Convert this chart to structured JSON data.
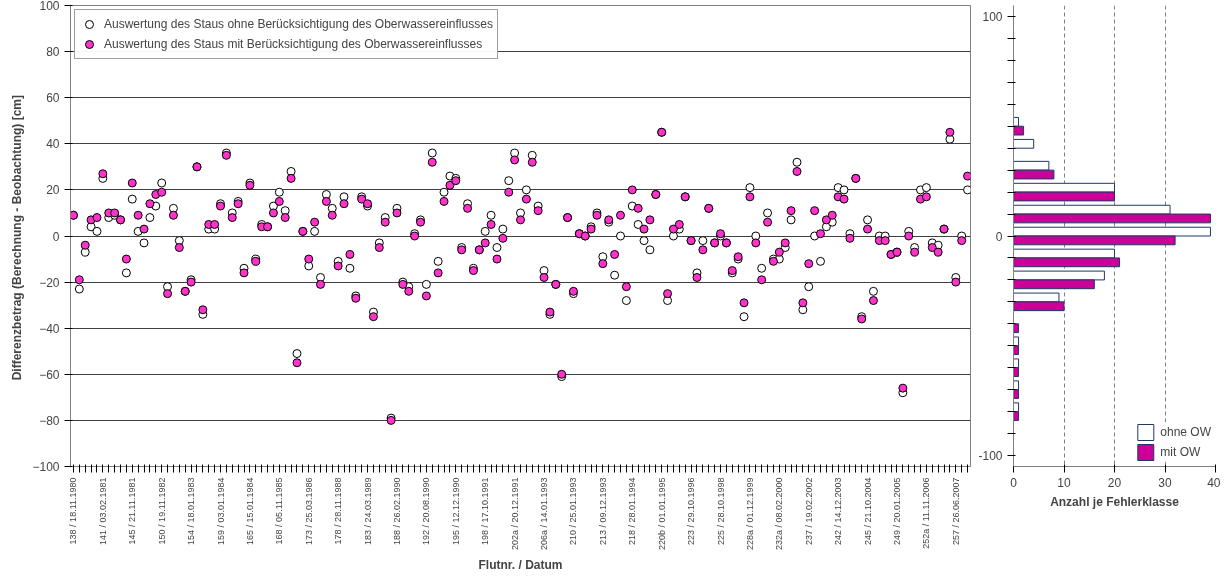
{
  "chart_data": [
    {
      "type": "scatter",
      "xlabel": "Flutnr. / Datum",
      "ylabel": "Differenzbetrag (Berechnung - Beobachtung)  [cm]",
      "categories": [
        "138 / 18.11.1980",
        null,
        null,
        null,
        null,
        "141 / 03.02.1981",
        null,
        null,
        null,
        null,
        "145 / 21.11.1981",
        null,
        null,
        null,
        null,
        "150 / 19.11.1982",
        null,
        null,
        null,
        null,
        "154 / 18.01.1983",
        null,
        null,
        null,
        null,
        "159 / 03.01.1984",
        null,
        null,
        null,
        null,
        "165 / 15.01.1984",
        null,
        null,
        null,
        null,
        "168 / 05.11.1985",
        null,
        null,
        null,
        null,
        "173 / 25.03.1986",
        null,
        null,
        null,
        null,
        "178 / 28.11.1988",
        null,
        null,
        null,
        null,
        "183 / 24.03.1989",
        null,
        null,
        null,
        null,
        "188 / 26.02.1990",
        null,
        null,
        null,
        null,
        "192 / 20.08.1990",
        null,
        null,
        null,
        null,
        "195 / 12.12.1990",
        null,
        null,
        null,
        null,
        "198 / 17.10.1991",
        null,
        null,
        null,
        null,
        "202a / 20.12.1991",
        null,
        null,
        null,
        null,
        "206a / 14.01.1993",
        null,
        null,
        null,
        null,
        "210 / 25.01.1993",
        null,
        null,
        null,
        null,
        "213 / 09.12.1993",
        null,
        null,
        null,
        null,
        "218 / 28.01.1994",
        null,
        null,
        null,
        null,
        "220b / 01.01.1995",
        null,
        null,
        null,
        null,
        "223 / 29.10.1996",
        null,
        null,
        null,
        null,
        "225 / 28.10.1998",
        null,
        null,
        null,
        null,
        "228a / 01.12.1999",
        null,
        null,
        null,
        null,
        "232a / 08.02.2000",
        null,
        null,
        null,
        null,
        "237 / 19.02.2002",
        null,
        null,
        null,
        null,
        "242 / 14.12.2003",
        null,
        null,
        null,
        null,
        "245 / 21.10.2004",
        null,
        null,
        null,
        null,
        "249 / 20.01.2005",
        null,
        null,
        null,
        null,
        "252a / 11.11.2006",
        null,
        null,
        null,
        null,
        "257 / 26.06.2007",
        null,
        null
      ],
      "series": [
        {
          "name": "Auswertung des Staus ohne Berücksichtigung des Oberwassereinflusses",
          "color": "#ffffff",
          "values": [
            9,
            -23,
            -7,
            4,
            2,
            25,
            8,
            9,
            7,
            -16,
            16,
            2,
            -3,
            8,
            13,
            23,
            -22,
            12,
            -2,
            -24,
            -19,
            30,
            -34,
            3,
            3,
            14,
            36,
            10,
            15,
            -14,
            23,
            -10,
            5,
            4,
            13,
            19,
            11,
            28,
            -51,
            2,
            -13,
            2,
            -18,
            18,
            12,
            -11,
            17,
            -14,
            -26,
            17,
            13,
            -33,
            -3,
            8,
            -79,
            12,
            -20,
            -22,
            1,
            7,
            -21,
            36,
            -11,
            19,
            26,
            25,
            -5,
            14,
            -14,
            -6,
            2,
            9,
            -5,
            3,
            24,
            36,
            10,
            20,
            35,
            13,
            -15,
            -34,
            -21,
            -61,
            8,
            -25,
            1,
            0,
            4,
            10,
            -9,
            6,
            -17,
            0,
            -28,
            13,
            5,
            -2,
            -6,
            18,
            45,
            -28,
            0,
            3,
            17,
            -2,
            -16,
            -2,
            12,
            -3,
            0,
            -3,
            -16,
            -10,
            -35,
            21,
            0,
            -14,
            10,
            -10,
            -10,
            -5,
            7,
            32,
            -32,
            -22,
            0,
            -11,
            4,
            6,
            21,
            20,
            1,
            25,
            -35,
            7,
            -24,
            0,
            0,
            -8,
            -7,
            -68,
            2,
            -5,
            20,
            21,
            -3,
            -4,
            3,
            42,
            -18,
            0,
            20
          ]
        },
        {
          "name": "Auswertung des Staus mit Berücksichtigung des Oberwassereinflusses",
          "color": "#ff33cc",
          "values": [
            9,
            -19,
            -4,
            7,
            8,
            27,
            10,
            10,
            7,
            -10,
            23,
            9,
            3,
            14,
            18,
            19,
            -25,
            9,
            -5,
            -24,
            -20,
            30,
            -32,
            5,
            5,
            13,
            35,
            8,
            14,
            -16,
            22,
            -11,
            4,
            4,
            10,
            15,
            8,
            25,
            -55,
            2,
            -10,
            6,
            -21,
            15,
            9,
            -13,
            14,
            -8,
            -27,
            16,
            14,
            -35,
            -5,
            6,
            -80,
            10,
            -21,
            -24,
            0,
            6,
            -26,
            32,
            -16,
            15,
            22,
            24,
            -6,
            12,
            -15,
            -6,
            -3,
            5,
            -10,
            -1,
            19,
            33,
            7,
            16,
            32,
            11,
            -18,
            -33,
            -21,
            -60,
            8,
            -24,
            1,
            0,
            3,
            9,
            -12,
            7,
            -8,
            9,
            -22,
            20,
            12,
            3,
            7,
            18,
            45,
            -25,
            3,
            5,
            17,
            -2,
            -18,
            -6,
            12,
            -3,
            1,
            -3,
            -15,
            -9,
            -29,
            17,
            -3,
            -19,
            6,
            -11,
            -7,
            -3,
            11,
            28,
            -29,
            -12,
            11,
            1,
            7,
            9,
            17,
            16,
            -1,
            25,
            -36,
            3,
            -28,
            -2,
            -2,
            -8,
            -7,
            -66,
            0,
            -7,
            16,
            17,
            -5,
            -7,
            3,
            45,
            -20,
            -2,
            26
          ]
        }
      ],
      "ylim": [
        -100,
        100
      ],
      "yticks": [
        -100,
        -80,
        -60,
        -40,
        -20,
        0,
        20,
        40,
        60,
        80,
        100
      ],
      "grid": "y",
      "legend": "top left",
      "marker": "circle"
    },
    {
      "type": "bar",
      "orientation": "horizontal",
      "xlabel": "Anzahl je Fehlerklasse",
      "categories": [
        "100",
        null,
        null,
        null,
        null,
        null,
        null,
        null,
        null,
        null,
        "0",
        null,
        null,
        null,
        null,
        null,
        null,
        null,
        null,
        null,
        "-100"
      ],
      "series": [
        {
          "name": "ohne OW",
          "color": "#ffffff",
          "values": [
            0,
            0,
            0,
            0,
            0,
            1,
            4,
            7,
            20,
            31,
            39,
            20,
            18,
            9,
            0,
            1,
            1,
            1,
            1,
            0,
            0
          ]
        },
        {
          "name": "mit OW",
          "color": "#cc0099",
          "values": [
            0,
            0,
            0,
            0,
            0,
            2,
            0,
            8,
            20,
            39,
            32,
            21,
            16,
            10,
            1,
            1,
            1,
            1,
            1,
            0,
            0
          ]
        }
      ],
      "xlim": [
        0,
        40
      ],
      "xticks": [
        0,
        10,
        20,
        30,
        40
      ],
      "grid": "x",
      "legend": "bottom right"
    }
  ]
}
